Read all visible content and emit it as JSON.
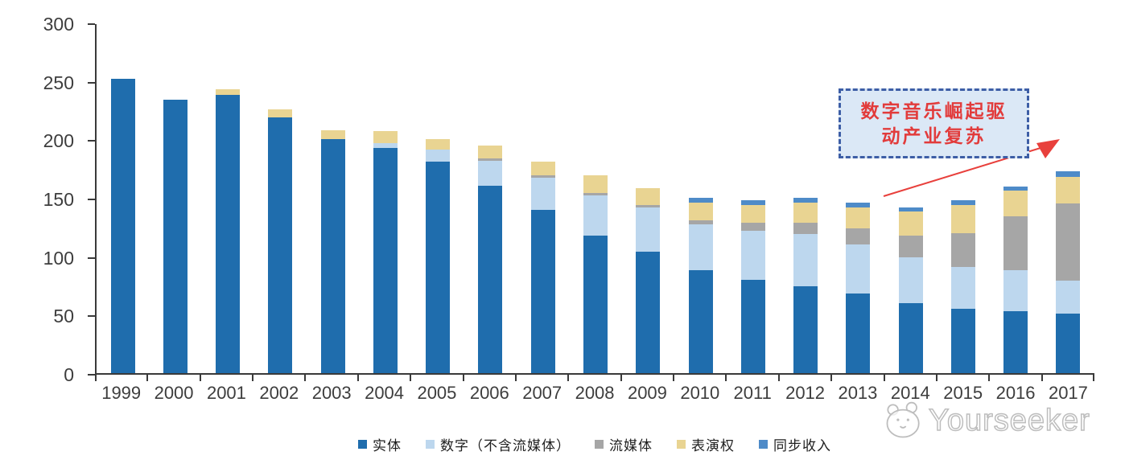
{
  "watermark": {
    "brand": "Yourseeker"
  },
  "annotation": {
    "full_text": "数字音乐崛起驱动产业复苏",
    "line1": "数字音乐崛起驱",
    "line2": "动产业复苏"
  },
  "colors": {
    "axis": "#3a3a3a",
    "tick_label": "#3d3d3d",
    "annotation_text": "#e23b3b",
    "annotation_border": "#3d5ea6",
    "annotation_fill": "#dbe8f6",
    "arrow": "#e8403c",
    "watermark_gray": "#bdbdbd",
    "background": "#ffffff"
  },
  "chart_data": {
    "type": "bar",
    "stacked": true,
    "title": "",
    "xlabel": "",
    "ylabel": "",
    "ylim": [
      0,
      300
    ],
    "yticks": [
      0,
      50,
      100,
      150,
      200,
      250,
      300
    ],
    "grid": false,
    "legend_position": "bottom",
    "categories": [
      "1999",
      "2000",
      "2001",
      "2002",
      "2003",
      "2004",
      "2005",
      "2006",
      "2007",
      "2008",
      "2009",
      "2010",
      "2011",
      "2012",
      "2013",
      "2014",
      "2015",
      "2016",
      "2017"
    ],
    "series": [
      {
        "name": "实体",
        "color": "#1f6dad",
        "values": [
          252,
          234,
          238,
          219,
          200,
          193,
          181,
          160,
          140,
          118,
          104,
          88,
          80,
          74,
          68,
          60,
          55,
          53,
          51
        ]
      },
      {
        "name": "数字（不含流媒体）",
        "color": "#bdd7ee",
        "values": [
          0,
          0,
          0,
          0,
          0,
          4,
          10,
          22,
          27,
          34,
          38,
          39,
          42,
          45,
          42,
          39,
          36,
          35,
          28
        ]
      },
      {
        "name": "流媒体",
        "color": "#a6a6a6",
        "values": [
          0,
          0,
          0,
          0,
          0,
          0,
          0,
          2,
          2,
          2,
          2,
          4,
          7,
          10,
          14,
          19,
          29,
          46,
          66
        ]
      },
      {
        "name": "表演权",
        "color": "#e9d492",
        "values": [
          0,
          0,
          5,
          7,
          8,
          10,
          9,
          11,
          12,
          15,
          14,
          15,
          15,
          17,
          18,
          20,
          24,
          22,
          23
        ]
      },
      {
        "name": "同步收入",
        "color": "#4e8bc8",
        "values": [
          0,
          0,
          0,
          0,
          0,
          0,
          0,
          0,
          0,
          0,
          0,
          4,
          4,
          4,
          4,
          4,
          4,
          4,
          5
        ]
      }
    ]
  }
}
